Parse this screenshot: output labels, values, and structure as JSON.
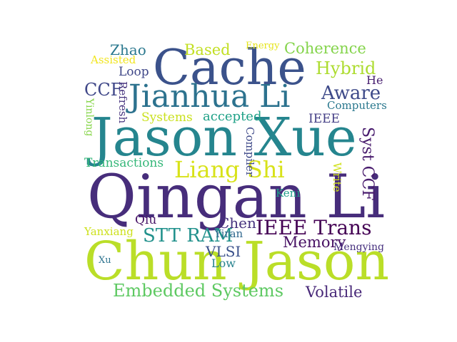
{
  "words": [
    {
      "text": "Qingan Li",
      "color": "#472d7b",
      "orientation": "horizontal"
    },
    {
      "text": "Jason Xue",
      "color": "#25858e",
      "orientation": "horizontal"
    },
    {
      "text": "Chun Jason",
      "color": "#bade28",
      "orientation": "horizontal"
    },
    {
      "text": "Cache",
      "color": "#3b528b",
      "orientation": "horizontal"
    },
    {
      "text": "Jianhua Li",
      "color": "#2c728e",
      "orientation": "horizontal"
    },
    {
      "text": "Liang Shi",
      "color": "#d8e219",
      "orientation": "horizontal"
    },
    {
      "text": "IEEE Trans",
      "color": "#440154",
      "orientation": "horizontal"
    },
    {
      "text": "Embedded Systems",
      "color": "#5ec962",
      "orientation": "horizontal"
    },
    {
      "text": "STT RAM",
      "color": "#21918c",
      "orientation": "horizontal"
    },
    {
      "text": "Volatile",
      "color": "#482878",
      "orientation": "horizontal"
    },
    {
      "text": "Hybrid",
      "color": "#addc30",
      "orientation": "horizontal"
    },
    {
      "text": "Coherence",
      "color": "#84d44b",
      "orientation": "horizontal"
    },
    {
      "text": "Aware",
      "color": "#3e4a89",
      "orientation": "horizontal"
    },
    {
      "text": "Zhao",
      "color": "#2a788e",
      "orientation": "horizontal"
    },
    {
      "text": "Based",
      "color": "#c2df23",
      "orientation": "horizontal"
    },
    {
      "text": "Energy",
      "color": "#e5e419",
      "orientation": "horizontal"
    },
    {
      "text": "Assisted",
      "color": "#f1e51d",
      "orientation": "horizontal"
    },
    {
      "text": "Loop",
      "color": "#3f4788",
      "orientation": "horizontal"
    },
    {
      "text": "He",
      "color": "#481f70",
      "orientation": "horizontal"
    },
    {
      "text": "CCF",
      "color": "#3f4788",
      "orientation": "horizontal"
    },
    {
      "text": "Computers",
      "color": "#2a788e",
      "orientation": "horizontal"
    },
    {
      "text": "Refresh",
      "color": "#46337e",
      "orientation": "vertical"
    },
    {
      "text": "Yinlong",
      "color": "#86d549",
      "orientation": "vertical"
    },
    {
      "text": "Systems",
      "color": "#cae11f",
      "orientation": "horizontal"
    },
    {
      "text": "accepted",
      "color": "#1fa187",
      "orientation": "horizontal"
    },
    {
      "text": "IEEE",
      "color": "#433e85",
      "orientation": "horizontal"
    },
    {
      "text": "Compiler",
      "color": "#3e4989",
      "orientation": "vertical"
    },
    {
      "text": "Syst CCF",
      "color": "#481b6d",
      "orientation": "vertical"
    },
    {
      "text": "Transactions",
      "color": "#35b779",
      "orientation": "horizontal"
    },
    {
      "text": "Write",
      "color": "#d0e11c",
      "orientation": "vertical"
    },
    {
      "text": "Keni",
      "color": "#1f9e89",
      "orientation": "horizontal"
    },
    {
      "text": "Qiu",
      "color": "#481467",
      "orientation": "horizontal"
    },
    {
      "text": "Chen",
      "color": "#46327e",
      "orientation": "horizontal"
    },
    {
      "text": "Yanxiang",
      "color": "#cde11d",
      "orientation": "horizontal"
    },
    {
      "text": "Yiran",
      "color": "#31688e",
      "orientation": "horizontal"
    },
    {
      "text": "Memory",
      "color": "#471063",
      "orientation": "horizontal"
    },
    {
      "text": "Mengying",
      "color": "#46307e",
      "orientation": "horizontal"
    },
    {
      "text": "VLSI",
      "color": "#3b518b",
      "orientation": "horizontal"
    },
    {
      "text": "Xu",
      "color": "#2c728e",
      "orientation": "horizontal"
    },
    {
      "text": "Low",
      "color": "#26828e",
      "orientation": "horizontal"
    }
  ]
}
